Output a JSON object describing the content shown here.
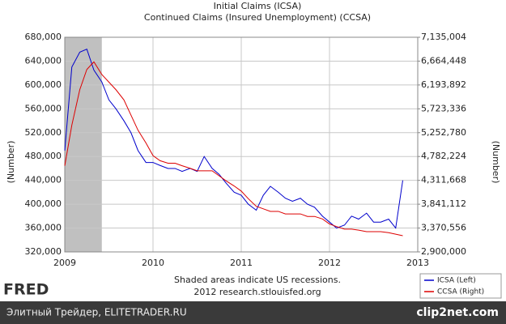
{
  "chart_data": {
    "type": "line",
    "title": "Initial Claims (ICSA)",
    "subtitle": "Continued Claims (Insured Unemployment) (CCSA)",
    "y_label": "(Number)",
    "y2_label": "(Number)",
    "notes": [
      "Shaded areas indicate US recessions.",
      "2012 research.stlouisfed.org"
    ],
    "grid": true,
    "legend": "bottom-right",
    "recessions": [
      [
        2009,
        2009.42
      ]
    ],
    "recession_color": "#c0c0c0",
    "xlim": [
      2009,
      2013
    ],
    "xticks": [
      2009,
      2010,
      2011,
      2012,
      2013
    ],
    "ylim": [
      320000,
      680000
    ],
    "yticks": [
      {
        "value": 320000,
        "label": "320,000"
      },
      {
        "value": 360000,
        "label": "360,000"
      },
      {
        "value": 400000,
        "label": "400,000"
      },
      {
        "value": 440000,
        "label": "440,000"
      },
      {
        "value": 480000,
        "label": "480,000"
      },
      {
        "value": 520000,
        "label": "520,000"
      },
      {
        "value": 560000,
        "label": "560,000"
      },
      {
        "value": 600000,
        "label": "600,000"
      },
      {
        "value": 640000,
        "label": "640,000"
      },
      {
        "value": 680000,
        "label": "680,000"
      }
    ],
    "y2lim": [
      2900000,
      7135004
    ],
    "y2ticks": [
      {
        "value": 2900000,
        "label": "2,900,000"
      },
      {
        "value": 3370556,
        "label": "3,370,556"
      },
      {
        "value": 3841112,
        "label": "3,841,112"
      },
      {
        "value": 4311668,
        "label": "4,311,668"
      },
      {
        "value": 4782224,
        "label": "4,782,224"
      },
      {
        "value": 5252780,
        "label": "5,252,780"
      },
      {
        "value": 5723336,
        "label": "5,723,336"
      },
      {
        "value": 6193892,
        "label": "6,193,892"
      },
      {
        "value": 6664448,
        "label": "6,664,448"
      },
      {
        "value": 7135004,
        "label": "7,135,004"
      }
    ],
    "x": [
      2009,
      2009.08,
      2009.17,
      2009.25,
      2009.33,
      2009.42,
      2009.5,
      2009.58,
      2009.67,
      2009.75,
      2009.83,
      2009.92,
      2010,
      2010.08,
      2010.17,
      2010.25,
      2010.33,
      2010.42,
      2010.5,
      2010.58,
      2010.67,
      2010.75,
      2010.83,
      2010.92,
      2011,
      2011.08,
      2011.17,
      2011.25,
      2011.33,
      2011.42,
      2011.5,
      2011.58,
      2011.67,
      2011.75,
      2011.83,
      2011.92,
      2012,
      2012.08,
      2012.17,
      2012.25,
      2012.33,
      2012.42,
      2012.5,
      2012.58,
      2012.67,
      2012.75,
      2012.83
    ],
    "series": [
      {
        "name": "ICSA (Left)",
        "color": "#0000cc",
        "axis": "y",
        "values": [
          490000,
          630000,
          655000,
          660000,
          625000,
          605000,
          575000,
          560000,
          540000,
          520000,
          490000,
          470000,
          470000,
          465000,
          460000,
          460000,
          455000,
          460000,
          455000,
          480000,
          460000,
          450000,
          435000,
          420000,
          415000,
          400000,
          390000,
          415000,
          430000,
          420000,
          410000,
          405000,
          410000,
          400000,
          395000,
          380000,
          370000,
          360000,
          365000,
          380000,
          375000,
          385000,
          370000,
          370000,
          375000,
          360000,
          440000
        ]
      },
      {
        "name": "CCSA (Right)",
        "color": "#dd0000",
        "axis": "y2",
        "values": [
          4600000,
          5400000,
          6100000,
          6500000,
          6650000,
          6400000,
          6250000,
          6100000,
          5900000,
          5600000,
          5300000,
          5050000,
          4800000,
          4700000,
          4650000,
          4650000,
          4600000,
          4550000,
          4500000,
          4500000,
          4500000,
          4400000,
          4300000,
          4200000,
          4100000,
          3950000,
          3800000,
          3750000,
          3700000,
          3700000,
          3650000,
          3650000,
          3650000,
          3600000,
          3600000,
          3550000,
          3450000,
          3400000,
          3350000,
          3350000,
          3330000,
          3300000,
          3300000,
          3300000,
          3280000,
          3250000,
          3220000
        ]
      }
    ]
  },
  "footer": {
    "logo": "FRED",
    "source": "Элитный Трейдер, ELITETRADER.RU",
    "watermark": "clip2net.com"
  }
}
